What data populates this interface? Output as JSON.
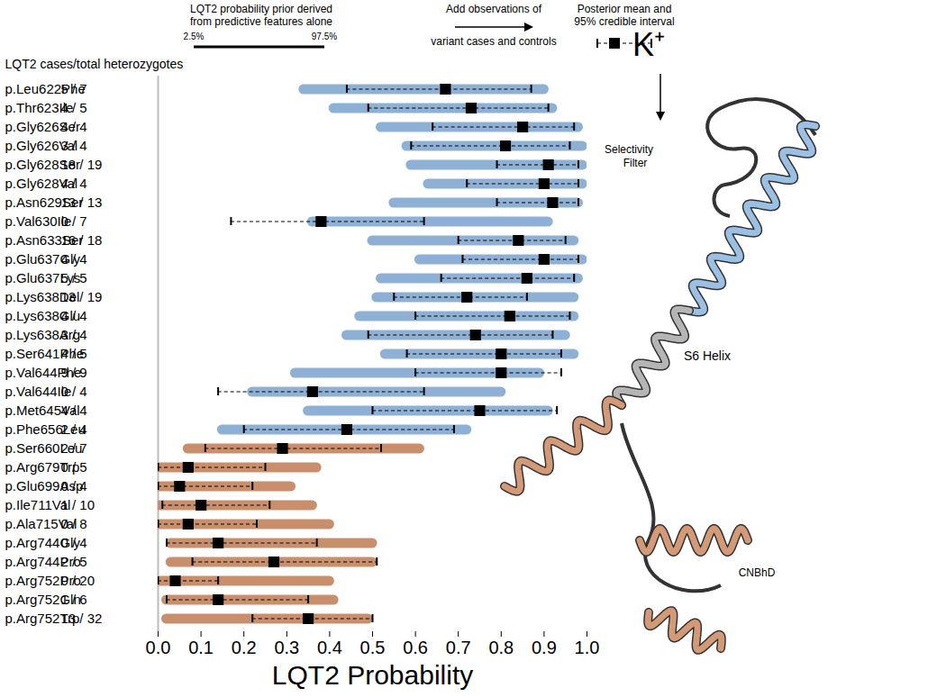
{
  "chart_data": {
    "type": "forest",
    "row_header": "LQT2 cases/total heterozygotes",
    "xlabel": "LQT2 Probability",
    "xlim": [
      0,
      1
    ],
    "xticks": [
      0,
      0.1,
      0.2,
      0.3,
      0.4,
      0.5,
      0.6,
      0.7,
      0.8,
      0.9,
      1
    ],
    "categories": [
      "p.Leu622Phe",
      "p.Thr623Ile",
      "p.Gly626Ser",
      "p.Gly626Val",
      "p.Gly628Ser",
      "p.Gly628Val",
      "p.Asn629Ser",
      "p.Val630Ile",
      "p.Asn633Ser",
      "p.Glu637Gly",
      "p.Glu637Lys",
      "p.Lys638Del",
      "p.Lys638Glu",
      "p.Lys638Arg",
      "p.Ser641Phe",
      "p.Val644Phe",
      "p.Val644Ile",
      "p.Met645Val",
      "p.Phe656Leu",
      "p.Ser660Leu",
      "p.Arg679Trp",
      "p.Glu699Asp",
      "p.Ile711Val",
      "p.Ala715Val",
      "p.Arg744Gly",
      "p.Arg744Pro",
      "p.Arg752Pro",
      "p.Arg752Gln",
      "p.Arg752Trp"
    ],
    "counts": [
      "5 / 7",
      "4 / 5",
      "4 / 4",
      "3 / 4",
      "18 / 19",
      "4 / 4",
      "13 / 13",
      "0 / 7",
      "16 / 18",
      "4 / 4",
      "5 / 5",
      "13 / 19",
      "4 / 4",
      "3 / 4",
      "4 / 5",
      "9 / 9",
      "0 / 4",
      "4 / 4",
      "2 / 4",
      "2 / 7",
      "0 / 5",
      "0 / 4",
      "1 / 10",
      "0 / 8",
      "0 / 4",
      "2 / 5",
      "0 / 20",
      "1 / 6",
      "13 / 32"
    ],
    "prior_low": [
      0.34,
      0.41,
      0.52,
      0.58,
      0.59,
      0.63,
      0.55,
      0.36,
      0.5,
      0.61,
      0.52,
      0.51,
      0.47,
      0.44,
      0.53,
      0.32,
      0.22,
      0.35,
      0.15,
      0.07,
      0.0,
      0.0,
      0.0,
      0.0,
      0.03,
      0.03,
      0.0,
      0.02,
      0.02
    ],
    "prior_high": [
      0.9,
      0.92,
      0.98,
      0.99,
      0.99,
      0.99,
      0.98,
      0.91,
      0.97,
      0.99,
      0.98,
      0.97,
      0.97,
      0.95,
      0.97,
      0.89,
      0.8,
      0.91,
      0.72,
      0.61,
      0.37,
      0.31,
      0.36,
      0.4,
      0.5,
      0.5,
      0.4,
      0.41,
      0.49
    ],
    "posterior_mean": [
      0.67,
      0.73,
      0.85,
      0.81,
      0.91,
      0.9,
      0.92,
      0.38,
      0.84,
      0.9,
      0.86,
      0.72,
      0.82,
      0.74,
      0.8,
      0.8,
      0.36,
      0.75,
      0.44,
      0.29,
      0.07,
      0.05,
      0.1,
      0.07,
      0.14,
      0.27,
      0.04,
      0.14,
      0.35
    ],
    "ci_low": [
      0.44,
      0.49,
      0.64,
      0.59,
      0.79,
      0.72,
      0.79,
      0.17,
      0.7,
      0.71,
      0.66,
      0.55,
      0.6,
      0.49,
      0.58,
      0.6,
      0.14,
      0.5,
      0.2,
      0.11,
      0.0,
      0.0,
      0.01,
      0.0,
      0.02,
      0.08,
      0.0,
      0.02,
      0.22
    ],
    "ci_high": [
      0.87,
      0.91,
      0.97,
      0.96,
      0.98,
      0.98,
      0.98,
      0.62,
      0.95,
      0.98,
      0.97,
      0.86,
      0.96,
      0.92,
      0.94,
      0.94,
      0.62,
      0.93,
      0.69,
      0.52,
      0.25,
      0.22,
      0.26,
      0.23,
      0.37,
      0.51,
      0.14,
      0.35,
      0.5
    ],
    "colors": [
      "#8eb0d4",
      "#8eb0d4",
      "#8eb0d4",
      "#8eb0d4",
      "#8eb0d4",
      "#8eb0d4",
      "#8eb0d4",
      "#8eb0d4",
      "#8eb0d4",
      "#8eb0d4",
      "#8eb0d4",
      "#8eb0d4",
      "#8eb0d4",
      "#8eb0d4",
      "#8eb0d4",
      "#8eb0d4",
      "#8eb0d4",
      "#8eb0d4",
      "#8eb0d4",
      "#c98f6c",
      "#c98f6c",
      "#c98f6c",
      "#c98f6c",
      "#c98f6c",
      "#c98f6c",
      "#c98f6c",
      "#c98f6c",
      "#c98f6c",
      "#c98f6c"
    ],
    "annotations": [
      "LQT2 probability prior derived",
      "from predictive features alone",
      "2.5%",
      "97.5%",
      "Add observations of",
      "variant cases and controls",
      "Posterior mean and",
      "95% credible interval",
      "K⁺",
      "Selectivity",
      "Filter",
      "S6 Helix",
      "CNBhD"
    ]
  }
}
